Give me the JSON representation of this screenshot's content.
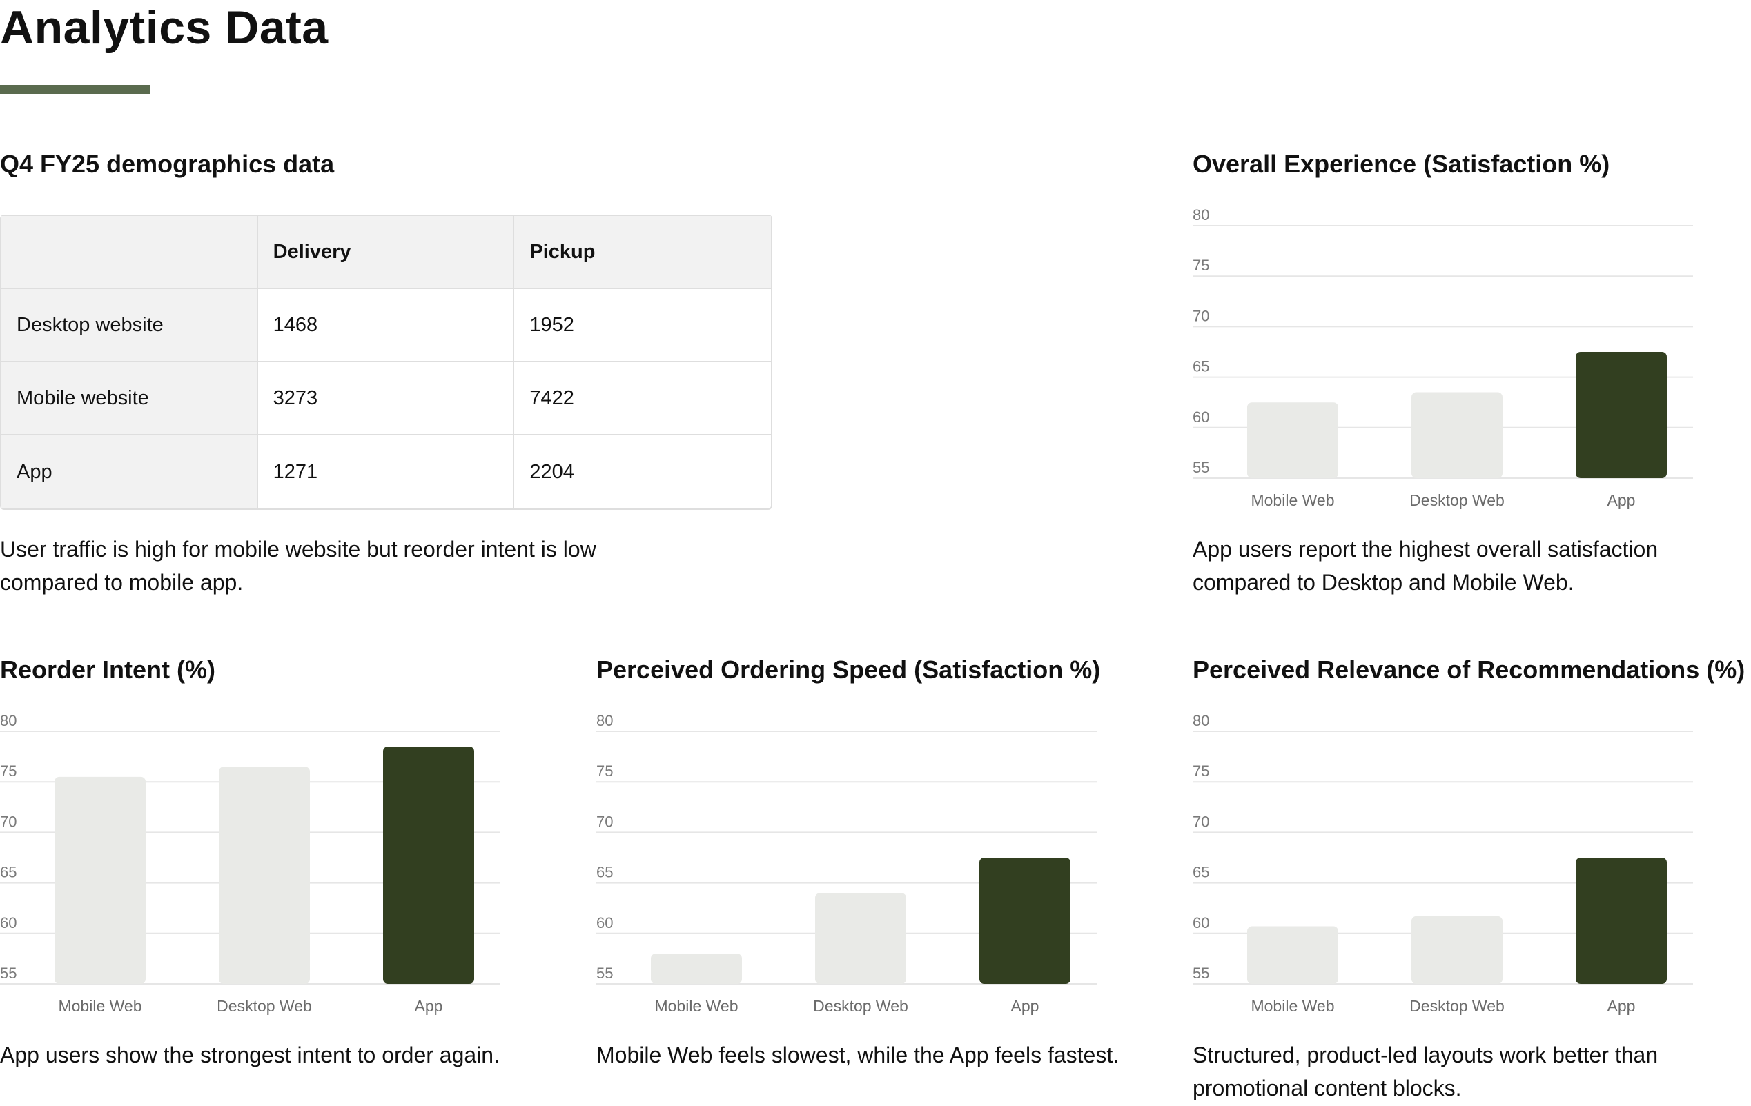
{
  "page": {
    "title": "Analytics Data"
  },
  "table": {
    "title": "Q4 FY25 demographics data",
    "headers": [
      "",
      "Delivery",
      "Pickup"
    ],
    "rows": [
      [
        "Desktop website",
        "1468",
        "1952"
      ],
      [
        "Mobile website",
        "3273",
        "7422"
      ],
      [
        "App",
        "1271",
        "2204"
      ]
    ],
    "caption": "User traffic is high for mobile website but reorder intent is low compared to mobile app."
  },
  "colors": {
    "muted_bar": "#e9eae7",
    "highlight_bar": "#323f20",
    "grid": "#e6e6e6",
    "accent_rule": "#5a6b4e"
  },
  "chart_data": [
    {
      "type": "bar",
      "title": "Overall Experience (Satisfaction %)",
      "categories": [
        "Mobile Web",
        "Desktop Web",
        "App"
      ],
      "values": [
        62.5,
        63.5,
        67.5
      ],
      "yticks": [
        80,
        75,
        70,
        65,
        60,
        55
      ],
      "ylim": [
        55,
        80
      ],
      "grid": true,
      "highlight": "App",
      "caption": "App users report the highest overall satisfaction compared to Desktop and Mobile Web."
    },
    {
      "type": "bar",
      "title": "Reorder Intent (%)",
      "categories": [
        "Mobile Web",
        "Desktop Web",
        "App"
      ],
      "values": [
        75.5,
        76.5,
        78.5
      ],
      "yticks": [
        80,
        75,
        70,
        65,
        60,
        55
      ],
      "ylim": [
        55,
        80
      ],
      "grid": true,
      "highlight": "App",
      "caption": "App users show the strongest intent to order again."
    },
    {
      "type": "bar",
      "title": "Perceived Ordering Speed (Satisfaction %)",
      "categories": [
        "Mobile Web",
        "Desktop Web",
        "App"
      ],
      "values": [
        58,
        64,
        67.5
      ],
      "yticks": [
        80,
        75,
        70,
        65,
        60,
        55
      ],
      "ylim": [
        55,
        80
      ],
      "grid": true,
      "highlight": "App",
      "caption": "Mobile Web feels slowest, while the App feels fastest."
    },
    {
      "type": "bar",
      "title": "Perceived Relevance of Recommendations (%)",
      "categories": [
        "Mobile Web",
        "Desktop Web",
        "App"
      ],
      "values": [
        60.7,
        61.7,
        67.5
      ],
      "yticks": [
        80,
        75,
        70,
        65,
        60,
        55
      ],
      "ylim": [
        55,
        80
      ],
      "grid": true,
      "highlight": "App",
      "caption": "Structured, product-led layouts work better than promotional content blocks."
    }
  ]
}
